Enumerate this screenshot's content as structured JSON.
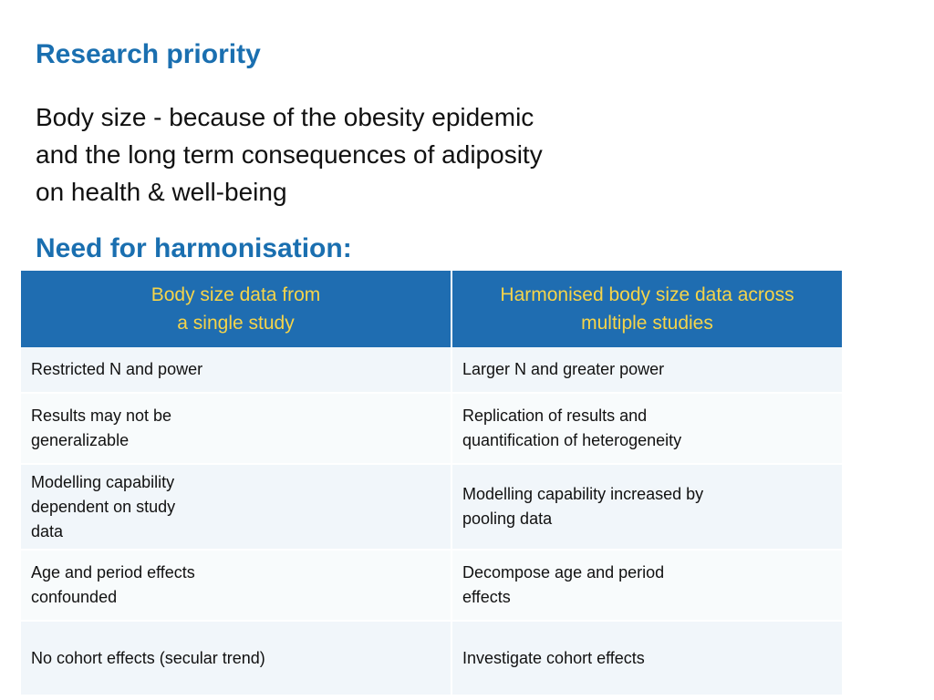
{
  "slide": {
    "title": "Research priority",
    "body_lines": [
      "Body size - because of the obesity epidemic",
      "and the long term consequences of adiposity",
      "on health & well-being"
    ],
    "subtitle": "Need for harmonisation:"
  },
  "table": {
    "headers": [
      [
        "Body size data from",
        "a single study"
      ],
      [
        "Harmonised body size data across",
        "multiple studies"
      ]
    ],
    "rows": [
      [
        [
          "Restricted N and power"
        ],
        [
          "Larger N and greater power"
        ]
      ],
      [
        [
          "Results may not be",
          "generalizable"
        ],
        [
          "Replication of results and",
          "quantification of heterogeneity"
        ]
      ],
      [
        [
          "Modelling capability",
          "dependent on study",
          "data"
        ],
        [
          "Modelling capability increased by",
          "pooling data"
        ]
      ],
      [
        [
          "Age and period effects",
          "confounded"
        ],
        [
          "Decompose age and period",
          "effects"
        ]
      ],
      [
        [
          "No cohort effects (secular trend)"
        ],
        [
          "Investigate cohort effects"
        ]
      ]
    ]
  },
  "colors": {
    "heading": "#1a6fb0",
    "table_header_bg": "#1f6db1",
    "table_header_text": "#f5d44a"
  }
}
